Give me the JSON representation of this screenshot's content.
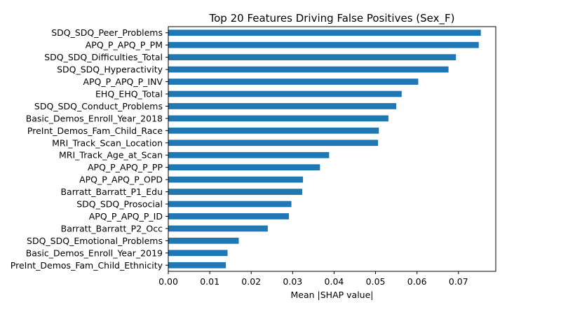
{
  "chart_data": {
    "type": "bar",
    "orientation": "horizontal",
    "title": "Top 20 Features Driving False Positives (Sex_F)",
    "xlabel": "Mean |SHAP value|",
    "ylabel": "",
    "xlim": [
      0.0,
      0.079
    ],
    "xticks": [
      "0.00",
      "0.01",
      "0.02",
      "0.03",
      "0.04",
      "0.05",
      "0.06",
      "0.07"
    ],
    "grid": false,
    "bar_color": "#1f77b4",
    "categories": [
      "SDQ_SDQ_Peer_Problems",
      "APQ_P_APQ_P_PM",
      "SDQ_SDQ_Difficulties_Total",
      "SDQ_SDQ_Hyperactivity",
      "APQ_P_APQ_P_INV",
      "EHQ_EHQ_Total",
      "SDQ_SDQ_Conduct_Problems",
      "Basic_Demos_Enroll_Year_2018",
      "PreInt_Demos_Fam_Child_Race",
      "MRI_Track_Scan_Location",
      "MRI_Track_Age_at_Scan",
      "APQ_P_APQ_P_PP",
      "APQ_P_APQ_P_OPD",
      "Barratt_Barratt_P1_Edu",
      "SDQ_SDQ_Prosocial",
      "APQ_P_APQ_P_ID",
      "Barratt_Barratt_P2_Occ",
      "SDQ_SDQ_Emotional_Problems",
      "Basic_Demos_Enroll_Year_2019",
      "PreInt_Demos_Fam_Child_Ethnicity"
    ],
    "values": [
      0.0754,
      0.0749,
      0.0694,
      0.0676,
      0.0603,
      0.0563,
      0.055,
      0.0531,
      0.0508,
      0.0506,
      0.0388,
      0.0366,
      0.0325,
      0.0323,
      0.0297,
      0.0291,
      0.024,
      0.017,
      0.0143,
      0.0139
    ]
  }
}
